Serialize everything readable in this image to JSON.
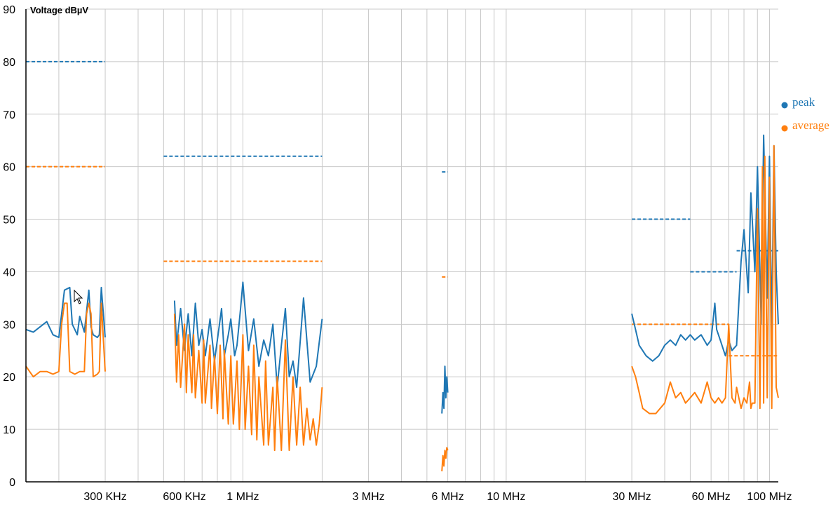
{
  "chart_data": {
    "type": "line",
    "title": "",
    "ylabel": "Voltage dBµV",
    "xlabel": "",
    "xscale": "log",
    "xlim_mhz": [
      0.15,
      108
    ],
    "ylim": [
      0,
      90
    ],
    "y_ticks": [
      0,
      10,
      20,
      30,
      40,
      50,
      60,
      70,
      80,
      90
    ],
    "x_tick_labels": [
      {
        "mhz": 0.3,
        "label": "300 KHz"
      },
      {
        "mhz": 0.6,
        "label": "600 KHz"
      },
      {
        "mhz": 1,
        "label": "1 MHz"
      },
      {
        "mhz": 3,
        "label": "3 MHz"
      },
      {
        "mhz": 6,
        "label": "6 MHz"
      },
      {
        "mhz": 10,
        "label": "10 MHz"
      },
      {
        "mhz": 30,
        "label": "30 MHz"
      },
      {
        "mhz": 60,
        "label": "60 MHz"
      },
      {
        "mhz": 100,
        "label": "100 MHz"
      }
    ],
    "grid": true,
    "legend": {
      "position": "right",
      "entries": [
        "peak",
        "average"
      ]
    },
    "colors": {
      "peak": "#1f77b4",
      "average": "#ff7f0e"
    },
    "series": [
      {
        "name": "peak",
        "segments": [
          {
            "x": [
              0.15,
              0.16,
              0.18,
              0.19,
              0.2,
              0.21,
              0.22,
              0.225,
              0.23,
              0.235,
              0.24,
              0.25,
              0.26,
              0.265,
              0.27,
              0.28,
              0.285,
              0.29,
              0.3
            ],
            "y": [
              29,
              28.5,
              30.5,
              28,
              27.5,
              36.5,
              37,
              30,
              29,
              28,
              31.5,
              28.5,
              36.5,
              29.5,
              28,
              27.5,
              28,
              37,
              27.5
            ]
          },
          {
            "x": [
              0.55,
              0.56,
              0.58,
              0.6,
              0.62,
              0.64,
              0.66,
              0.68,
              0.7,
              0.72,
              0.75,
              0.78,
              0.8,
              0.83,
              0.85,
              0.88,
              0.9,
              0.93,
              0.95,
              0.98,
              1.0,
              1.05,
              1.1,
              1.15,
              1.2,
              1.25,
              1.3,
              1.35,
              1.4,
              1.45,
              1.5,
              1.55,
              1.6,
              1.7,
              1.8,
              1.9,
              2.0
            ],
            "y": [
              34.5,
              26,
              33,
              25,
              32,
              24,
              34,
              26,
              29,
              24,
              31,
              23,
              27,
              33,
              24,
              28,
              31,
              24,
              26,
              33,
              38,
              25,
              31,
              22,
              27,
              24,
              30,
              18,
              26,
              33,
              20,
              23,
              18,
              35,
              19,
              22,
              31
            ]
          },
          {
            "x": [
              5.7,
              5.75,
              5.8,
              5.85,
              5.9,
              5.95,
              6.0
            ],
            "y": [
              13,
              17,
              14,
              22,
              16,
              20,
              17
            ]
          },
          {
            "x": [
              30,
              31,
              32,
              34,
              36,
              38,
              40,
              42,
              44,
              46,
              48,
              50,
              52,
              55,
              58,
              60,
              62,
              63,
              65,
              68,
              70,
              72,
              75,
              78,
              80,
              83,
              85,
              88,
              90,
              93,
              95,
              98,
              100,
              102,
              104,
              106,
              108
            ],
            "y": [
              32,
              29,
              26,
              24,
              23,
              24,
              26,
              27,
              26,
              28,
              27,
              28,
              27,
              28,
              26,
              27,
              34,
              29,
              27,
              24,
              27,
              25,
              26,
              42,
              48,
              36,
              55,
              40,
              60,
              30,
              66,
              35,
              62,
              28,
              64,
              40,
              30
            ]
          }
        ]
      },
      {
        "name": "average",
        "segments": [
          {
            "x": [
              0.15,
              0.16,
              0.17,
              0.18,
              0.19,
              0.2,
              0.205,
              0.21,
              0.215,
              0.22,
              0.23,
              0.24,
              0.25,
              0.255,
              0.26,
              0.265,
              0.27,
              0.28,
              0.285,
              0.29,
              0.3
            ],
            "y": [
              22,
              20,
              21,
              21,
              20.5,
              21,
              30,
              34,
              34,
              21,
              20.5,
              21,
              21,
              32,
              34,
              32,
              20,
              20.5,
              21,
              34,
              21
            ]
          },
          {
            "x": [
              0.55,
              0.56,
              0.57,
              0.58,
              0.6,
              0.61,
              0.62,
              0.64,
              0.65,
              0.66,
              0.68,
              0.7,
              0.71,
              0.72,
              0.75,
              0.76,
              0.78,
              0.8,
              0.82,
              0.84,
              0.85,
              0.88,
              0.9,
              0.92,
              0.95,
              0.97,
              1.0,
              1.02,
              1.05,
              1.08,
              1.1,
              1.13,
              1.15,
              1.2,
              1.22,
              1.25,
              1.3,
              1.32,
              1.35,
              1.4,
              1.45,
              1.5,
              1.55,
              1.6,
              1.65,
              1.7,
              1.75,
              1.8,
              1.85,
              1.9,
              1.95,
              2.0
            ],
            "y": [
              32,
              19,
              28,
              18,
              30,
              17,
              28,
              17,
              28,
              16,
              25,
              15,
              27,
              15,
              26,
              14,
              24,
              13,
              26,
              12,
              25,
              11,
              24,
              11,
              23,
              10,
              28,
              10,
              22,
              9,
              26,
              8,
              20,
              7,
              23,
              7,
              18,
              6,
              20,
              6,
              27,
              6,
              20,
              7,
              18,
              7,
              14,
              8,
              12,
              7,
              11,
              18
            ]
          },
          {
            "x": [
              5.7,
              5.75,
              5.8,
              5.85,
              5.9,
              5.95,
              6.0
            ],
            "y": [
              2,
              5,
              3,
              6,
              4.5,
              6.5,
              6
            ]
          },
          {
            "x": [
              30,
              31,
              32,
              33,
              35,
              37,
              40,
              42,
              44,
              46,
              48,
              50,
              52,
              55,
              58,
              60,
              62,
              64,
              66,
              68,
              70,
              72,
              74,
              75,
              78,
              80,
              82,
              84,
              85,
              86,
              88,
              90,
              92,
              94,
              95,
              96,
              98,
              100,
              102,
              104,
              106,
              108
            ],
            "y": [
              22,
              20,
              17,
              14,
              13,
              13,
              15,
              19,
              16,
              17,
              15,
              16,
              17,
              15,
              19,
              16,
              15,
              16,
              15,
              16,
              30,
              16,
              15,
              18,
              14,
              16,
              15,
              19,
              14,
              15,
              15,
              52,
              14,
              60,
              15,
              62,
              16,
              58,
              14,
              64,
              18,
              16
            ]
          }
        ]
      }
    ],
    "limit_lines": [
      {
        "series": "peak",
        "segments": [
          {
            "x": [
              0.15,
              0.3
            ],
            "y": 80
          },
          {
            "x": [
              0.5,
              2.0
            ],
            "y": 62
          },
          {
            "x": [
              5.7,
              6.0
            ],
            "y": 59
          },
          {
            "x": [
              30,
              50
            ],
            "y": 50
          },
          {
            "x": [
              50,
              75
            ],
            "y": 40
          },
          {
            "x": [
              75,
              108
            ],
            "y": 44
          }
        ]
      },
      {
        "series": "average",
        "segments": [
          {
            "x": [
              0.15,
              0.3
            ],
            "y": 60
          },
          {
            "x": [
              0.5,
              2.0
            ],
            "y": 42
          },
          {
            "x": [
              5.7,
              6.0
            ],
            "y": 39
          },
          {
            "x": [
              30,
              70
            ],
            "y": 30
          },
          {
            "x": [
              70,
              108
            ],
            "y": 24
          }
        ]
      }
    ]
  }
}
